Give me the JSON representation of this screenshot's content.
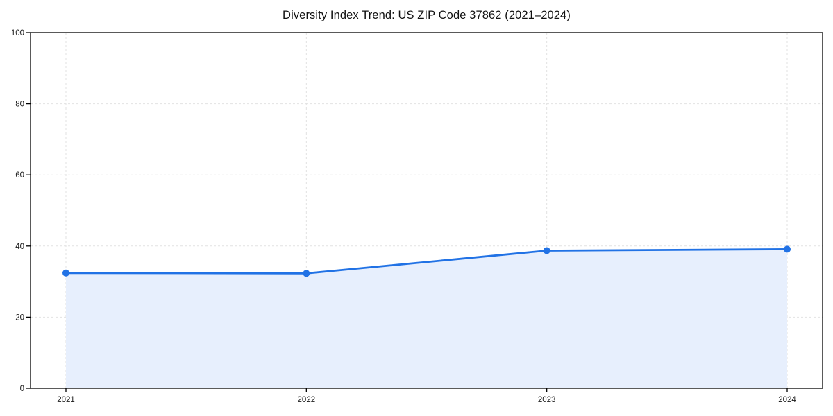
{
  "chart_data": {
    "type": "area",
    "title": "Diversity Index Trend: US ZIP Code 37862 (2021–2024)",
    "categories": [
      "2021",
      "2022",
      "2023",
      "2024"
    ],
    "series": [
      {
        "name": "Diversity Index",
        "values": [
          32.4,
          32.3,
          38.7,
          39.1
        ]
      }
    ],
    "xlabel": "",
    "ylabel": "",
    "ylim": [
      0,
      100
    ],
    "yticks": [
      0,
      20,
      40,
      60,
      80,
      100
    ],
    "grid": true,
    "grid_style": "dashed",
    "legend": "none",
    "colors": {
      "line": "#2172e5",
      "marker": "#2172e5",
      "fill": "#e7effd",
      "grid": "#e2e2e2",
      "spine": "#000000",
      "tick_label": "#1a1a1a",
      "background": "#ffffff"
    },
    "marker_shape": "circle"
  }
}
